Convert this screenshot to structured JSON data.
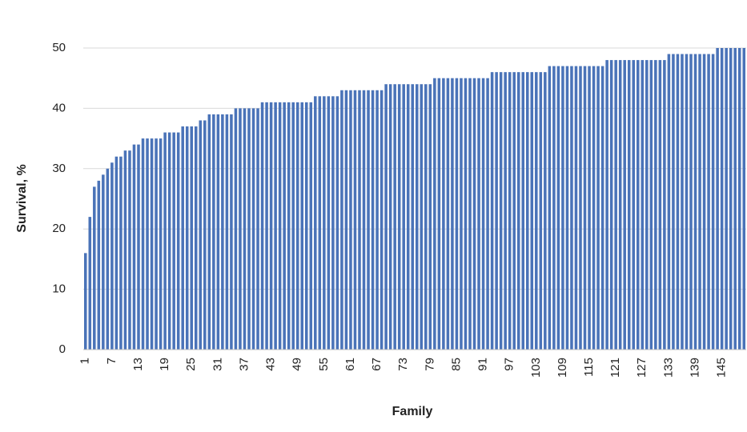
{
  "chart_data": {
    "type": "bar",
    "ylabel": "Survival, %",
    "xlabel": "Family",
    "color": "#4a73b8",
    "grid": true,
    "ylim": [
      0,
      50
    ],
    "yticks": [
      0,
      10,
      20,
      30,
      40,
      50
    ],
    "categories": [
      "1",
      null,
      null,
      null,
      null,
      null,
      "7",
      null,
      null,
      null,
      null,
      null,
      "13",
      null,
      null,
      null,
      null,
      null,
      "19",
      null,
      null,
      null,
      null,
      null,
      "25",
      null,
      null,
      null,
      null,
      null,
      "31",
      null,
      null,
      null,
      null,
      null,
      "37",
      null,
      null,
      null,
      null,
      null,
      "43",
      null,
      null,
      null,
      null,
      null,
      "49",
      null,
      null,
      null,
      null,
      null,
      "55",
      null,
      null,
      null,
      null,
      null,
      "61",
      null,
      null,
      null,
      null,
      null,
      "67",
      null,
      null,
      null,
      null,
      null,
      "73",
      null,
      null,
      null,
      null,
      null,
      "79",
      null,
      null,
      null,
      null,
      null,
      "85",
      null,
      null,
      null,
      null,
      null,
      "91",
      null,
      null,
      null,
      null,
      null,
      "97",
      null,
      null,
      null,
      null,
      null,
      "103",
      null,
      null,
      null,
      null,
      null,
      "109",
      null,
      null,
      null,
      null,
      null,
      "115",
      null,
      null,
      null,
      null,
      null,
      "121",
      null,
      null,
      null,
      null,
      null,
      "127",
      null,
      null,
      null,
      null,
      null,
      "133",
      null,
      null,
      null,
      null,
      null,
      "139",
      null,
      null,
      null,
      null,
      null,
      "145",
      null,
      null,
      null,
      null,
      null
    ],
    "values": [
      16,
      22,
      27,
      28,
      29,
      30,
      31,
      32,
      32,
      33,
      33,
      34,
      34,
      35,
      35,
      35,
      35,
      35,
      36,
      36,
      36,
      36,
      37,
      37,
      37,
      37,
      38,
      38,
      39,
      39,
      39,
      39,
      39,
      39,
      40,
      40,
      40,
      40,
      40,
      40,
      41,
      41,
      41,
      41,
      41,
      41,
      41,
      41,
      41,
      41,
      41,
      41,
      42,
      42,
      42,
      42,
      42,
      42,
      43,
      43,
      43,
      43,
      43,
      43,
      43,
      43,
      43,
      43,
      44,
      44,
      44,
      44,
      44,
      44,
      44,
      44,
      44,
      44,
      44,
      45,
      45,
      45,
      45,
      45,
      45,
      45,
      45,
      45,
      45,
      45,
      45,
      45,
      46,
      46,
      46,
      46,
      46,
      46,
      46,
      46,
      46,
      46,
      46,
      46,
      46,
      47,
      47,
      47,
      47,
      47,
      47,
      47,
      47,
      47,
      47,
      47,
      47,
      47,
      48,
      48,
      48,
      48,
      48,
      48,
      48,
      48,
      48,
      48,
      48,
      48,
      48,
      48,
      49,
      49,
      49,
      49,
      49,
      49,
      49,
      49,
      49,
      49,
      49,
      50,
      50,
      50,
      50,
      50,
      50,
      50
    ]
  }
}
